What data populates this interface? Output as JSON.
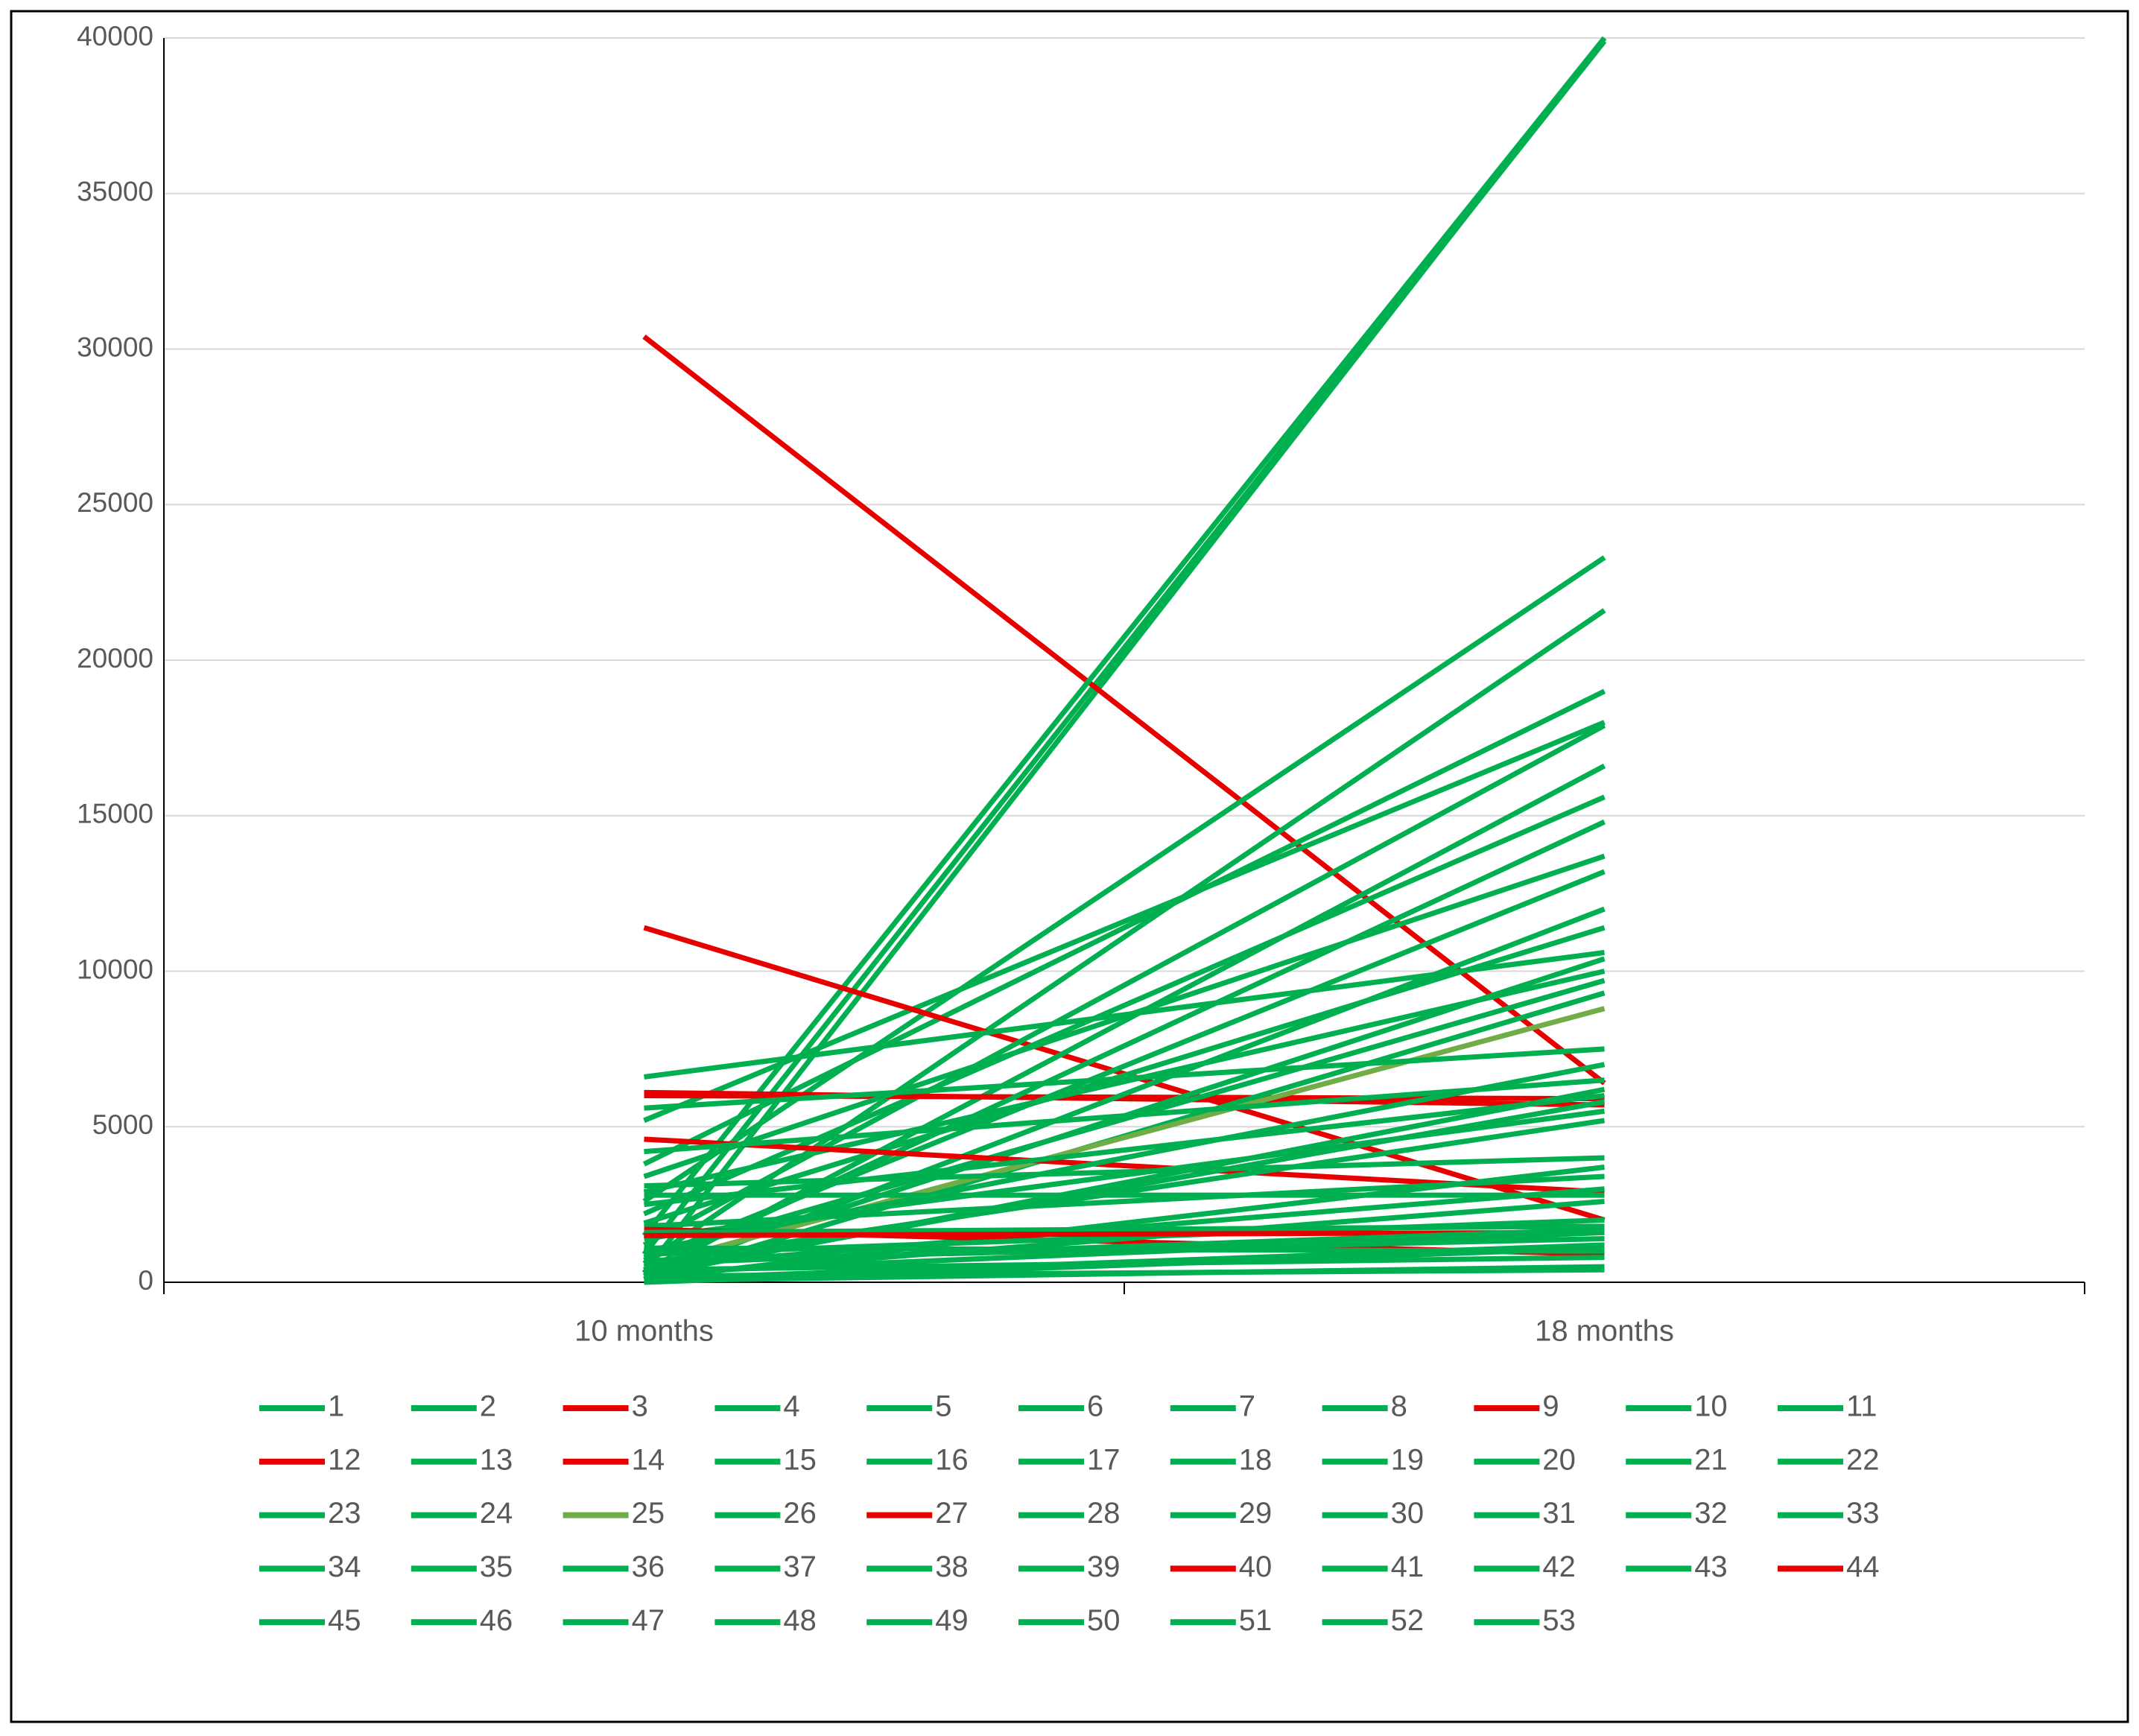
{
  "chart_data": {
    "type": "line",
    "categories": [
      "10 months",
      "18 months"
    ],
    "ylim": [
      0,
      40000
    ],
    "yticks": [
      0,
      5000,
      10000,
      15000,
      20000,
      25000,
      30000,
      35000,
      40000
    ],
    "grid": true,
    "legend": "bottom",
    "series": [
      {
        "name": "1",
        "color": "#00b050",
        "values": [
          300,
          40000
        ]
      },
      {
        "name": "2",
        "color": "#00b050",
        "values": [
          900,
          39900
        ]
      },
      {
        "name": "3",
        "color": "#e60000",
        "values": [
          30400,
          6400
        ]
      },
      {
        "name": "4",
        "color": "#00b050",
        "values": [
          1500,
          40000
        ]
      },
      {
        "name": "5",
        "color": "#00b050",
        "values": [
          2600,
          23300
        ]
      },
      {
        "name": "6",
        "color": "#00b050",
        "values": [
          600,
          21600
        ]
      },
      {
        "name": "7",
        "color": "#00b050",
        "values": [
          3800,
          19000
        ]
      },
      {
        "name": "8",
        "color": "#00b050",
        "values": [
          5200,
          18000
        ]
      },
      {
        "name": "9",
        "color": "#e60000",
        "values": [
          11400,
          2000
        ]
      },
      {
        "name": "10",
        "color": "#00b050",
        "values": [
          1200,
          17900
        ]
      },
      {
        "name": "11",
        "color": "#00b050",
        "values": [
          200,
          16600
        ]
      },
      {
        "name": "12",
        "color": "#e60000",
        "values": [
          6100,
          5700
        ]
      },
      {
        "name": "13",
        "color": "#00b050",
        "values": [
          2200,
          15600
        ]
      },
      {
        "name": "14",
        "color": "#e60000",
        "values": [
          6000,
          5900
        ]
      },
      {
        "name": "15",
        "color": "#00b050",
        "values": [
          400,
          14800
        ]
      },
      {
        "name": "16",
        "color": "#00b050",
        "values": [
          3400,
          13700
        ]
      },
      {
        "name": "17",
        "color": "#00b050",
        "values": [
          700,
          13200
        ]
      },
      {
        "name": "18",
        "color": "#00b050",
        "values": [
          100,
          12000
        ]
      },
      {
        "name": "19",
        "color": "#00b050",
        "values": [
          1900,
          11400
        ]
      },
      {
        "name": "20",
        "color": "#00b050",
        "values": [
          6600,
          10600
        ]
      },
      {
        "name": "21",
        "color": "#00b050",
        "values": [
          300,
          10400
        ]
      },
      {
        "name": "22",
        "color": "#00b050",
        "values": [
          2900,
          10000
        ]
      },
      {
        "name": "23",
        "color": "#00b050",
        "values": [
          800,
          9700
        ]
      },
      {
        "name": "24",
        "color": "#00b050",
        "values": [
          100,
          9300
        ]
      },
      {
        "name": "25",
        "color": "#70ad47",
        "values": [
          500,
          8800
        ]
      },
      {
        "name": "26",
        "color": "#00b050",
        "values": [
          5600,
          7500
        ]
      },
      {
        "name": "27",
        "color": "#e60000",
        "values": [
          4600,
          2900
        ]
      },
      {
        "name": "28",
        "color": "#00b050",
        "values": [
          1000,
          7000
        ]
      },
      {
        "name": "29",
        "color": "#00b050",
        "values": [
          4200,
          6500
        ]
      },
      {
        "name": "30",
        "color": "#00b050",
        "values": [
          200,
          6200
        ]
      },
      {
        "name": "31",
        "color": "#00b050",
        "values": [
          2500,
          6000
        ]
      },
      {
        "name": "32",
        "color": "#00b050",
        "values": [
          300,
          5800
        ]
      },
      {
        "name": "33",
        "color": "#00b050",
        "values": [
          1400,
          5500
        ]
      },
      {
        "name": "34",
        "color": "#00b050",
        "values": [
          600,
          5200
        ]
      },
      {
        "name": "35",
        "color": "#00b050",
        "values": [
          3100,
          4000
        ]
      },
      {
        "name": "36",
        "color": "#00b050",
        "values": [
          100,
          3700
        ]
      },
      {
        "name": "37",
        "color": "#00b050",
        "values": [
          1800,
          3400
        ]
      },
      {
        "name": "38",
        "color": "#00b050",
        "values": [
          500,
          3000
        ]
      },
      {
        "name": "39",
        "color": "#00b050",
        "values": [
          2800,
          2800
        ]
      },
      {
        "name": "40",
        "color": "#e60000",
        "values": [
          1700,
          900
        ]
      },
      {
        "name": "41",
        "color": "#00b050",
        "values": [
          200,
          2600
        ]
      },
      {
        "name": "42",
        "color": "#00b050",
        "values": [
          900,
          2000
        ]
      },
      {
        "name": "43",
        "color": "#00b050",
        "values": [
          1600,
          1800
        ]
      },
      {
        "name": "44",
        "color": "#e60000",
        "values": [
          1500,
          1600
        ]
      },
      {
        "name": "45",
        "color": "#00b050",
        "values": [
          300,
          1600
        ]
      },
      {
        "name": "46",
        "color": "#00b050",
        "values": [
          700,
          1400
        ]
      },
      {
        "name": "47",
        "color": "#00b050",
        "values": [
          100,
          1200
        ]
      },
      {
        "name": "48",
        "color": "#00b050",
        "values": [
          1100,
          1000
        ]
      },
      {
        "name": "49",
        "color": "#00b050",
        "values": [
          400,
          800
        ]
      },
      {
        "name": "50",
        "color": "#00b050",
        "values": [
          50,
          500
        ]
      },
      {
        "name": "51",
        "color": "#00b050",
        "values": [
          200,
          400
        ]
      },
      {
        "name": "52",
        "color": "#00b050",
        "values": [
          600,
          1700
        ]
      },
      {
        "name": "53",
        "color": "#00b050",
        "values": [
          0,
          1100
        ]
      }
    ]
  }
}
